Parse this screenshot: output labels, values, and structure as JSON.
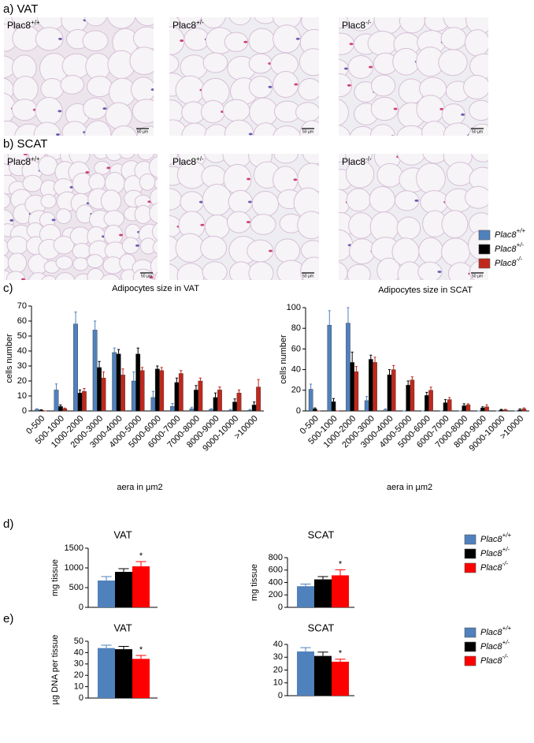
{
  "panels": {
    "a": "a) VAT",
    "b": "b) SCAT",
    "c": "c)",
    "d": "d)",
    "e": "e)"
  },
  "micrographs": [
    {
      "label": "Plac8",
      "genotype": "+/+",
      "scale": "50 µm"
    },
    {
      "label": "Plac8",
      "genotype": "+/-",
      "scale": "50 µm"
    },
    {
      "label": "Plac8",
      "genotype": "-/-",
      "scale": "50 µm"
    },
    {
      "label": "Plac8",
      "genotype": "+/+",
      "scale": "50 µm"
    },
    {
      "label": "Plac8",
      "genotype": "+/-",
      "scale": "50 µm"
    },
    {
      "label": "Plac8",
      "genotype": "-/-",
      "scale": "50 µm"
    }
  ],
  "chart_data": [
    {
      "type": "bar",
      "title": "Adipocytes size in VAT",
      "y_label": "cells number",
      "x_label": "aera in µm2",
      "categories": [
        "0-500",
        "500-1000",
        "1000-2000",
        "2000-3000",
        "3000-4000",
        "4000-5000",
        "5000-6000",
        "6000-7000",
        "7000-8000",
        "8000-9000",
        "9000-10000",
        ">10000"
      ],
      "ylim": [
        0,
        70
      ],
      "yticks": [
        0,
        10,
        20,
        30,
        40,
        50,
        60,
        70
      ],
      "series": [
        {
          "color": "#4f81bd",
          "values": [
            1,
            14,
            58,
            54,
            39,
            20,
            9,
            3,
            1.5,
            1,
            0.5,
            0.5
          ],
          "errors": [
            0.5,
            4,
            8,
            6,
            3,
            6,
            4,
            2,
            1,
            0.5,
            0.5,
            0.5
          ]
        },
        {
          "color": "#000000",
          "values": [
            0.5,
            3,
            12,
            29,
            38,
            38,
            28,
            19,
            14,
            9,
            6,
            4
          ],
          "errors": [
            0.3,
            1,
            2,
            4,
            3,
            4,
            2,
            3,
            3,
            3,
            2,
            2
          ]
        },
        {
          "color": "#c0281c",
          "values": [
            0,
            1.5,
            13,
            22,
            24,
            27,
            27,
            25,
            20,
            14,
            12,
            16
          ],
          "errors": [
            0,
            0.5,
            2,
            4,
            4,
            2,
            2,
            2,
            2,
            2,
            2,
            5
          ]
        }
      ]
    },
    {
      "type": "bar",
      "title": "Adipocytes size in SCAT",
      "y_label": "cells number",
      "x_label": "aera in µm2",
      "categories": [
        "0-500",
        "500-1000",
        "1000-2000",
        "2000-3000",
        "3000-4000",
        "4000-5000",
        "5000-6000",
        "6000-7000",
        "7000-8000",
        "8000-9000",
        "9000-10000",
        ">10000"
      ],
      "ylim": [
        0,
        100
      ],
      "yticks": [
        0,
        20,
        40,
        60,
        80,
        100
      ],
      "series": [
        {
          "name": "Plac8",
          "superscript": "+/+",
          "color": "#4f81bd",
          "values": [
            21,
            83,
            85,
            10,
            1,
            0,
            0,
            0,
            0,
            0,
            0,
            0
          ],
          "errors": [
            5,
            14,
            15,
            4,
            1,
            0,
            0,
            0,
            0,
            0,
            0,
            0
          ]
        },
        {
          "name": "Plac8",
          "superscript": "+/-",
          "color": "#000000",
          "values": [
            2,
            9,
            47,
            50,
            35,
            25,
            15,
            8,
            5,
            3,
            1,
            1
          ],
          "errors": [
            1,
            3,
            10,
            4,
            5,
            4,
            3,
            3,
            2,
            1,
            0.5,
            1
          ]
        },
        {
          "name": "Plac8",
          "superscript": "-/-",
          "color": "#c0281c",
          "values": [
            0,
            0,
            38,
            47,
            40,
            30,
            20,
            11,
            6,
            4,
            1,
            2
          ],
          "errors": [
            0,
            0,
            5,
            5,
            4,
            3,
            3,
            2,
            1,
            2,
            0.5,
            1
          ]
        }
      ]
    },
    {
      "type": "bar",
      "title": "VAT",
      "y_label": "mg tissue",
      "ylim": [
        0,
        1500
      ],
      "yticks": [
        0,
        500,
        1000,
        1500
      ],
      "series": [
        {
          "color": "#4f81bd",
          "values": [
            680
          ],
          "errors": [
            100
          ]
        },
        {
          "color": "#000000",
          "values": [
            900
          ],
          "errors": [
            80
          ]
        },
        {
          "color": "#ff0000",
          "values": [
            1040
          ],
          "errors": [
            120
          ],
          "annotation": "*"
        }
      ]
    },
    {
      "type": "bar",
      "title": "SCAT",
      "y_label": "mg tissue",
      "ylim": [
        0,
        800
      ],
      "yticks": [
        0,
        200,
        400,
        600,
        800
      ],
      "series": [
        {
          "name": "Plac8",
          "superscript": "+/+",
          "color": "#4f81bd",
          "values": [
            340
          ],
          "errors": [
            35
          ]
        },
        {
          "name": "Plac8",
          "superscript": "+/-",
          "color": "#000000",
          "values": [
            450
          ],
          "errors": [
            45
          ]
        },
        {
          "name": "Plac8",
          "superscript": "-/-",
          "color": "#ff0000",
          "values": [
            515
          ],
          "errors": [
            90
          ],
          "annotation": "*"
        }
      ]
    },
    {
      "type": "bar",
      "title": "VAT",
      "y_label": "µg DNA  per tissue",
      "ylim": [
        0,
        50
      ],
      "yticks": [
        0,
        10,
        20,
        30,
        40,
        50
      ],
      "series": [
        {
          "color": "#4f81bd",
          "values": [
            44
          ],
          "errors": [
            2.5
          ]
        },
        {
          "color": "#000000",
          "values": [
            43
          ],
          "errors": [
            2.5
          ]
        },
        {
          "color": "#ff0000",
          "values": [
            34.5
          ],
          "errors": [
            3
          ],
          "annotation": "*"
        }
      ]
    },
    {
      "type": "bar",
      "title": "SCAT",
      "ylim": [
        0,
        40
      ],
      "yticks": [
        0,
        10,
        20,
        30,
        40
      ],
      "series": [
        {
          "name": "Plac8",
          "superscript": "+/+",
          "color": "#4f81bd",
          "values": [
            34.5
          ],
          "errors": [
            3
          ]
        },
        {
          "name": "Plac8",
          "superscript": "+/-",
          "color": "#000000",
          "values": [
            31
          ],
          "errors": [
            3
          ]
        },
        {
          "name": "Plac8",
          "superscript": "-/-",
          "color": "#ff0000",
          "values": [
            26.5
          ],
          "errors": [
            2
          ],
          "annotation": "*"
        }
      ]
    }
  ]
}
